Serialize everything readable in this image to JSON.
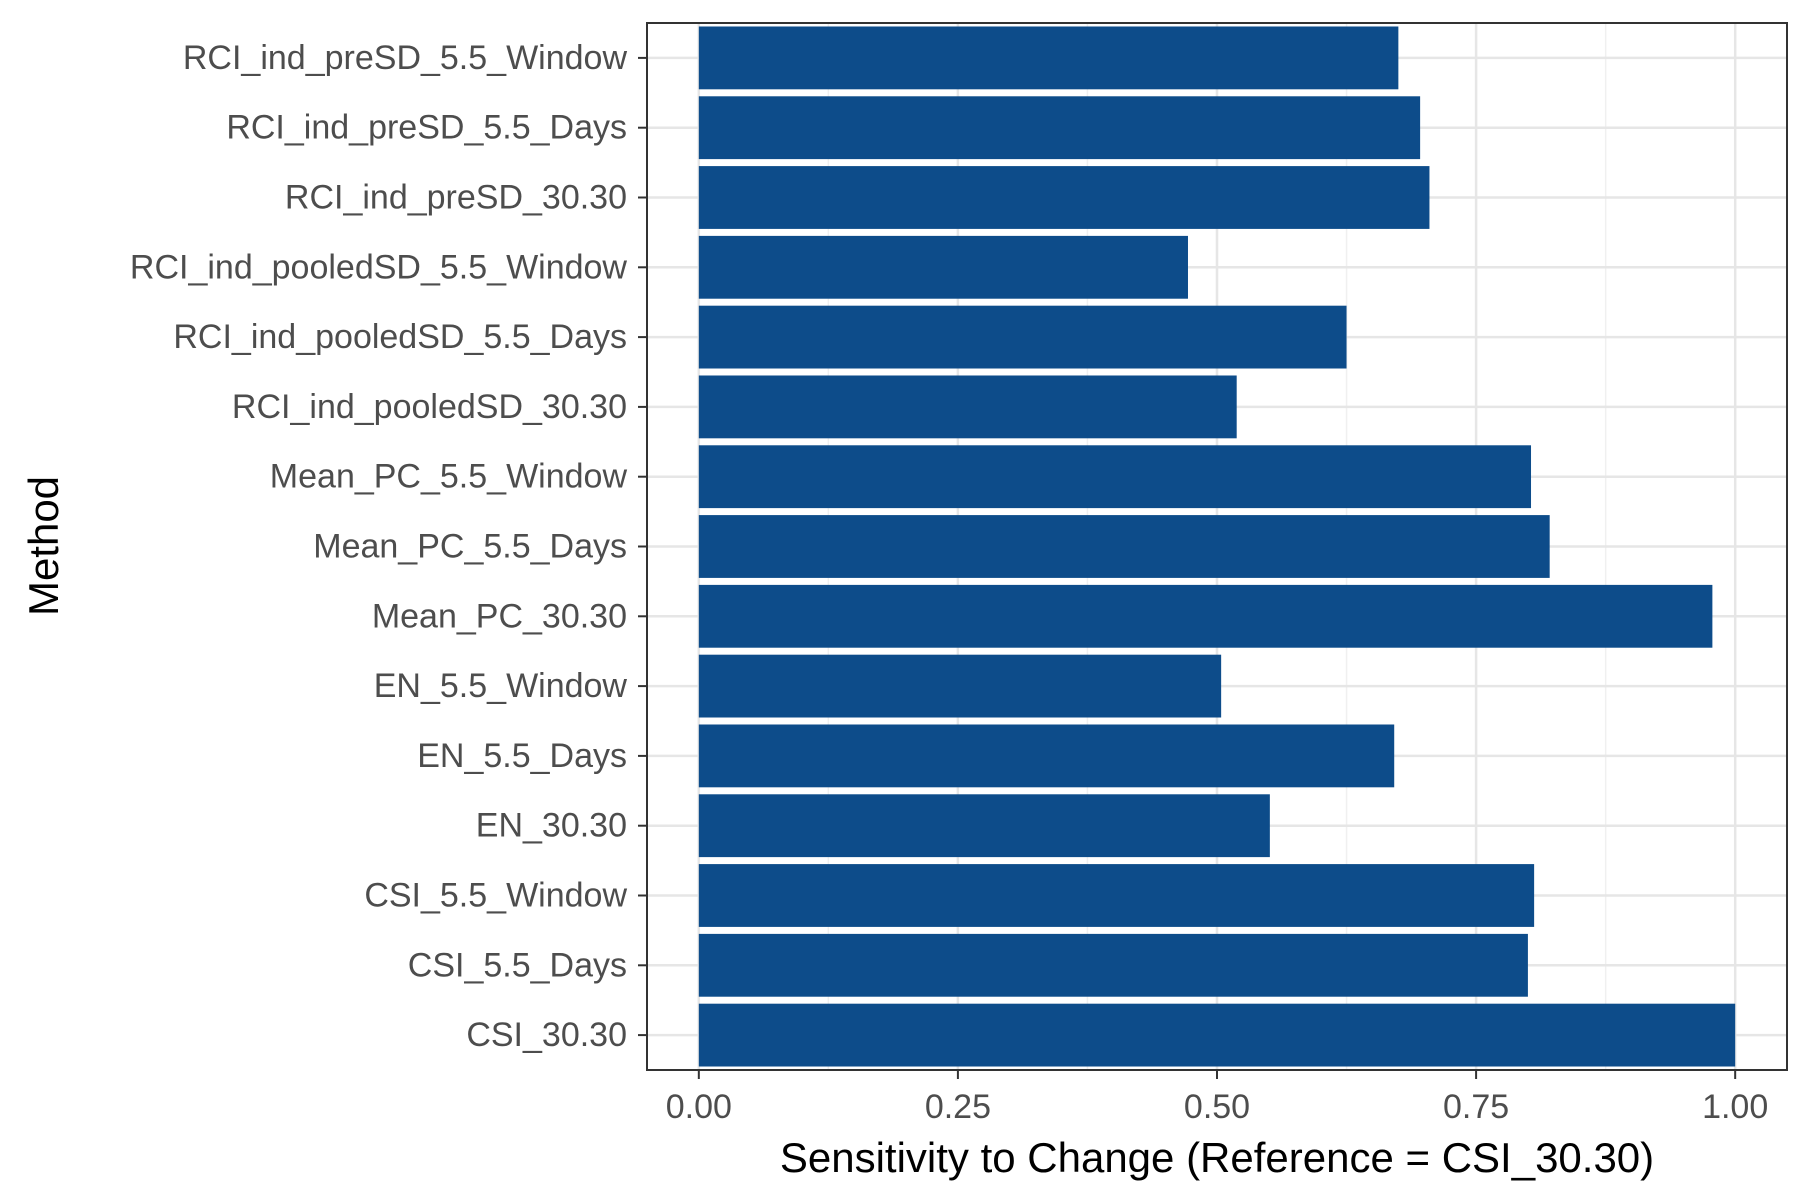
{
  "chart_data": {
    "type": "bar",
    "orientation": "horizontal",
    "title": "",
    "xlabel": "Sensitivity to Change (Reference = CSI_30.30)",
    "ylabel": "Method",
    "xlim": [
      -0.05,
      1.05
    ],
    "x_ticks": [
      0.0,
      0.25,
      0.5,
      0.75,
      1.0
    ],
    "x_tick_labels": [
      "0.00",
      "0.25",
      "0.50",
      "0.75",
      "1.00"
    ],
    "grid": true,
    "legend": "none",
    "bar_color": "#0d4c8a",
    "categories": [
      "RCI_ind_preSD_5.5_Window",
      "RCI_ind_preSD_5.5_Days",
      "RCI_ind_preSD_30.30",
      "RCI_ind_pooledSD_5.5_Window",
      "RCI_ind_pooledSD_5.5_Days",
      "RCI_ind_pooledSD_30.30",
      "Mean_PC_5.5_Window",
      "Mean_PC_5.5_Days",
      "Mean_PC_30.30",
      "EN_5.5_Window",
      "EN_5.5_Days",
      "EN_30.30",
      "CSI_5.5_Window",
      "CSI_5.5_Days",
      "CSI_30.30"
    ],
    "values": [
      0.675,
      0.696,
      0.705,
      0.472,
      0.625,
      0.519,
      0.803,
      0.821,
      0.978,
      0.504,
      0.671,
      0.551,
      0.806,
      0.8,
      1.0
    ]
  }
}
